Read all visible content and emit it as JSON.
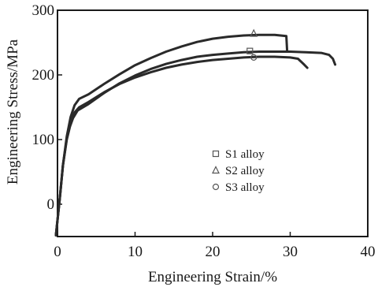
{
  "chart_data": {
    "type": "line",
    "xlabel": "Engineering Strain/%",
    "ylabel": "Engineering Stress/MPa",
    "xlim": [
      0,
      40
    ],
    "ylim": [
      -50,
      300
    ],
    "x_ticks": [
      0,
      10,
      20,
      30,
      40
    ],
    "y_ticks": [
      0,
      100,
      200,
      300
    ],
    "x_tick_labels": [
      "0",
      "10",
      "20",
      "30",
      "40"
    ],
    "y_tick_labels": [
      "0",
      "100",
      "200",
      "300"
    ],
    "grid": false,
    "legend_position": "center-right",
    "series": [
      {
        "name": "S1 alloy",
        "marker": "square",
        "marker_point": [
          24.8,
          237
        ],
        "points": [
          [
            -0.2,
            -48
          ],
          [
            0.3,
            10
          ],
          [
            0.7,
            60
          ],
          [
            1.2,
            100
          ],
          [
            1.6,
            120
          ],
          [
            2.0,
            133
          ],
          [
            2.6,
            145
          ],
          [
            4,
            155
          ],
          [
            6,
            172
          ],
          [
            8,
            187
          ],
          [
            10,
            199
          ],
          [
            12,
            209
          ],
          [
            14,
            217
          ],
          [
            16,
            223
          ],
          [
            18,
            228
          ],
          [
            20,
            231
          ],
          [
            22,
            233
          ],
          [
            24,
            235
          ],
          [
            26,
            236
          ],
          [
            28,
            236
          ],
          [
            30,
            236
          ],
          [
            32,
            235
          ],
          [
            34,
            234
          ],
          [
            35,
            231
          ],
          [
            35.5,
            225
          ],
          [
            35.8,
            216
          ]
        ]
      },
      {
        "name": "S2 alloy",
        "marker": "triangle",
        "marker_point": [
          25.3,
          264
        ],
        "points": [
          [
            -0.2,
            -48
          ],
          [
            0.3,
            10
          ],
          [
            0.7,
            60
          ],
          [
            1.2,
            105
          ],
          [
            1.7,
            135
          ],
          [
            2.2,
            153
          ],
          [
            2.8,
            163
          ],
          [
            4,
            170
          ],
          [
            6,
            186
          ],
          [
            8,
            201
          ],
          [
            10,
            215
          ],
          [
            12,
            226
          ],
          [
            14,
            236
          ],
          [
            16,
            244
          ],
          [
            18,
            251
          ],
          [
            20,
            256
          ],
          [
            22,
            259
          ],
          [
            24,
            261
          ],
          [
            26,
            262
          ],
          [
            28,
            262
          ],
          [
            29.5,
            260
          ],
          [
            29.6,
            237
          ]
        ]
      },
      {
        "name": "S3 alloy",
        "marker": "circle",
        "marker_point": [
          25.3,
          227
        ],
        "points": [
          [
            -0.2,
            -48
          ],
          [
            0.3,
            10
          ],
          [
            0.7,
            60
          ],
          [
            1.2,
            102
          ],
          [
            1.7,
            128
          ],
          [
            2.2,
            142
          ],
          [
            2.8,
            150
          ],
          [
            4,
            158
          ],
          [
            6,
            173
          ],
          [
            8,
            186
          ],
          [
            10,
            196
          ],
          [
            12,
            204
          ],
          [
            14,
            211
          ],
          [
            16,
            216
          ],
          [
            18,
            220
          ],
          [
            20,
            223
          ],
          [
            22,
            225
          ],
          [
            24,
            227
          ],
          [
            26,
            228
          ],
          [
            28,
            228
          ],
          [
            30,
            227
          ],
          [
            31,
            225
          ],
          [
            31.8,
            216
          ],
          [
            32.2,
            211
          ]
        ]
      }
    ]
  }
}
